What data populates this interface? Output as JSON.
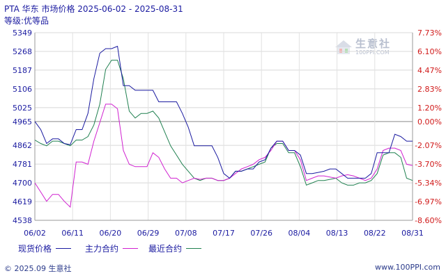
{
  "header": {
    "title": "PTA 华东 市场价格 2025-06-02 - 2025-08-31",
    "subtitle": "等级:优等品"
  },
  "legend": {
    "items": [
      {
        "label": "现货价格",
        "color": "#1a1aa0"
      },
      {
        "label": "主力合约",
        "color": "#d020d0"
      },
      {
        "label": "最近合约",
        "color": "#208050"
      }
    ]
  },
  "footer": {
    "copyright": "© 2025.09 生意社",
    "site": "www.100PPI.com"
  },
  "watermark": {
    "text": "生意社",
    "sub": "100PPI.COM"
  },
  "chart_data": {
    "type": "line",
    "x": [
      "06/02",
      "06/03",
      "06/04",
      "06/05",
      "06/06",
      "06/09",
      "06/10",
      "06/11",
      "06/12",
      "06/13",
      "06/16",
      "06/17",
      "06/18",
      "06/19",
      "06/20",
      "06/23",
      "06/24",
      "06/25",
      "06/26",
      "06/27",
      "06/30",
      "07/01",
      "07/02",
      "07/03",
      "07/04",
      "07/07",
      "07/08",
      "07/09",
      "07/10",
      "07/11",
      "07/14",
      "07/15",
      "07/16",
      "07/17",
      "07/18",
      "07/21",
      "07/22",
      "07/23",
      "07/24",
      "07/25",
      "07/28",
      "07/29",
      "07/30",
      "07/31",
      "08/01",
      "08/04",
      "08/05",
      "08/06",
      "08/07",
      "08/08",
      "08/11",
      "08/12",
      "08/13",
      "08/14",
      "08/15",
      "08/18",
      "08/19",
      "08/20",
      "08/21",
      "08/22",
      "08/25",
      "08/26",
      "08/27",
      "08/28",
      "08/29"
    ],
    "x_tick_labels": [
      "06/02",
      "06/11",
      "06/20",
      "06/29",
      "07/08",
      "07/17",
      "07/26",
      "08/04",
      "08/13",
      "08/22",
      "08/31"
    ],
    "y_left_ticks": [
      5349,
      5268,
      5187,
      5106,
      5025,
      4965,
      4862,
      4781,
      4700,
      4619,
      4538
    ],
    "y_right_ticks": [
      "7.73%",
      "6.10%",
      "4.47%",
      "2.83%",
      "1.20%",
      "0.00%",
      "-2.07%",
      "-3.70%",
      "-5.34%",
      "-6.97%",
      "-8.60%"
    ],
    "ylim": [
      4538,
      5349
    ],
    "baseline": 4965,
    "series": [
      {
        "name": "现货价格",
        "color": "#1a1aa0",
        "values": [
          4965,
          4930,
          4870,
          4890,
          4890,
          4870,
          4865,
          4930,
          4930,
          5000,
          5150,
          5260,
          5280,
          5280,
          5290,
          5120,
          5120,
          5100,
          5100,
          5100,
          5100,
          5050,
          5050,
          5050,
          5050,
          5000,
          4940,
          4860,
          4860,
          4860,
          4860,
          4810,
          4740,
          4720,
          4750,
          4750,
          4760,
          4760,
          4790,
          4800,
          4850,
          4880,
          4880,
          4840,
          4840,
          4820,
          4740,
          4740,
          4745,
          4750,
          4760,
          4760,
          4740,
          4720,
          4720,
          4720,
          4720,
          4740,
          4830,
          4830,
          4830,
          4910,
          4900,
          4880,
          4880
        ]
      },
      {
        "name": "主力合约",
        "color": "#d020d0",
        "values": [
          4700,
          4660,
          4620,
          4650,
          4650,
          4620,
          4595,
          4790,
          4790,
          4780,
          4880,
          4960,
          5040,
          5040,
          5020,
          4840,
          4780,
          4770,
          4770,
          4770,
          4830,
          4810,
          4760,
          4720,
          4720,
          4700,
          4710,
          4720,
          4715,
          4720,
          4720,
          4710,
          4710,
          4720,
          4740,
          4760,
          4770,
          4780,
          4800,
          4810,
          4840,
          4880,
          4880,
          4840,
          4840,
          4800,
          4710,
          4720,
          4730,
          4730,
          4725,
          4720,
          4730,
          4735,
          4730,
          4720,
          4710,
          4720,
          4760,
          4840,
          4850,
          4850,
          4840,
          4780,
          4775
        ]
      },
      {
        "name": "最近合约",
        "color": "#208050",
        "values": [
          4885,
          4870,
          4860,
          4880,
          4880,
          4870,
          4860,
          4885,
          4885,
          4900,
          4950,
          5040,
          5190,
          5230,
          5230,
          5150,
          5010,
          4980,
          5000,
          5000,
          5010,
          4980,
          4920,
          4860,
          4820,
          4780,
          4750,
          4720,
          4710,
          4720,
          4720,
          4710,
          4710,
          4720,
          4750,
          4750,
          4760,
          4770,
          4780,
          4790,
          4850,
          4870,
          4870,
          4830,
          4830,
          4770,
          4690,
          4700,
          4710,
          4710,
          4715,
          4720,
          4700,
          4690,
          4690,
          4700,
          4700,
          4710,
          4740,
          4820,
          4830,
          4830,
          4810,
          4720,
          4710
        ]
      }
    ]
  }
}
